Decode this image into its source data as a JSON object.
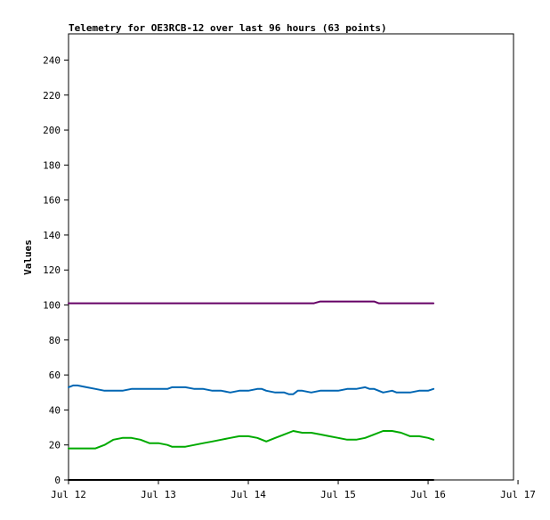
{
  "chart_data": {
    "type": "line",
    "title": "Telemetry for OE3RCB-12 over last 96 hours (63 points)",
    "xlabel": "",
    "ylabel": "Values",
    "x_ticks": [
      "Jul 12",
      "Jul 13",
      "Jul 14",
      "Jul 15",
      "Jul 16",
      "Jul 17"
    ],
    "x_tick_days": [
      0,
      1,
      2,
      3,
      4,
      5
    ],
    "xlim_days": [
      0,
      4.95
    ],
    "y_ticks": [
      "0",
      "20",
      "40",
      "60",
      "80",
      "100",
      "120",
      "140",
      "160",
      "180",
      "200",
      "220",
      "240"
    ],
    "ylim": [
      0,
      255
    ],
    "grid": false,
    "legend": "none",
    "series": [
      {
        "color": "#660066",
        "x_days": [
          0,
          0.5,
          1,
          1.5,
          2,
          2.5,
          2.73,
          2.8,
          3.0,
          3.4,
          3.45,
          3.55,
          4.0,
          4.06
        ],
        "values": [
          101,
          101,
          101,
          101,
          101,
          101,
          101,
          102,
          102,
          102,
          101,
          101,
          101,
          101
        ]
      },
      {
        "color": "#0066b3",
        "x_days": [
          0,
          0.05,
          0.1,
          0.2,
          0.3,
          0.4,
          0.5,
          0.6,
          0.7,
          0.8,
          0.9,
          1.0,
          1.1,
          1.15,
          1.2,
          1.3,
          1.4,
          1.5,
          1.6,
          1.7,
          1.8,
          1.9,
          1.95,
          2.0,
          2.1,
          2.15,
          2.2,
          2.3,
          2.4,
          2.45,
          2.5,
          2.55,
          2.6,
          2.7,
          2.8,
          2.9,
          3.0,
          3.1,
          3.2,
          3.3,
          3.35,
          3.4,
          3.5,
          3.6,
          3.65,
          3.7,
          3.8,
          3.9,
          4.0,
          4.06
        ],
        "values": [
          53,
          54,
          54,
          53,
          52,
          51,
          51,
          51,
          52,
          52,
          52,
          52,
          52,
          53,
          53,
          53,
          52,
          52,
          51,
          51,
          50,
          51,
          51,
          51,
          52,
          52,
          51,
          50,
          50,
          49,
          49,
          51,
          51,
          50,
          51,
          51,
          51,
          52,
          52,
          53,
          52,
          52,
          50,
          51,
          50,
          50,
          50,
          51,
          51,
          52
        ]
      },
      {
        "color": "#00aa00",
        "x_days": [
          0,
          0.1,
          0.2,
          0.3,
          0.4,
          0.5,
          0.6,
          0.7,
          0.8,
          0.9,
          1.0,
          1.1,
          1.15,
          1.2,
          1.3,
          1.4,
          1.5,
          1.6,
          1.7,
          1.8,
          1.9,
          2.0,
          2.1,
          2.15,
          2.2,
          2.3,
          2.4,
          2.5,
          2.6,
          2.7,
          2.8,
          2.9,
          3.0,
          3.1,
          3.2,
          3.3,
          3.4,
          3.5,
          3.6,
          3.7,
          3.8,
          3.9,
          4.0,
          4.06
        ],
        "values": [
          18,
          18,
          18,
          18,
          20,
          23,
          24,
          24,
          23,
          21,
          21,
          20,
          19,
          19,
          19,
          20,
          21,
          22,
          23,
          24,
          25,
          25,
          24,
          23,
          22,
          24,
          26,
          28,
          27,
          27,
          26,
          25,
          24,
          23,
          23,
          24,
          26,
          28,
          28,
          27,
          25,
          25,
          24,
          23
        ]
      },
      {
        "color": "#000000",
        "x_days": [
          0,
          4.06
        ],
        "values": [
          0,
          0
        ]
      }
    ]
  }
}
